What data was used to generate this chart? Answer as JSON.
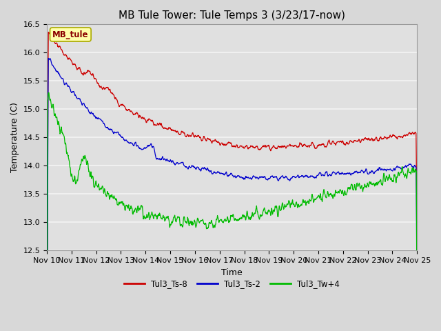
{
  "title": "MB Tule Tower: Tule Temps 3 (3/23/17-now)",
  "xlabel": "Time",
  "ylabel": "Temperature (C)",
  "ylim": [
    12.5,
    16.5
  ],
  "xlim": [
    0,
    15
  ],
  "x_tick_labels": [
    "Nov 10",
    "Nov 11",
    "Nov 12",
    "Nov 13",
    "Nov 14",
    "Nov 15",
    "Nov 16",
    "Nov 17",
    "Nov 18",
    "Nov 19",
    "Nov 20",
    "Nov 21",
    "Nov 22",
    "Nov 23",
    "Nov 24",
    "Nov 25"
  ],
  "legend_labels": [
    "Tul3_Ts-8",
    "Tul3_Ts-2",
    "Tul3_Tw+4"
  ],
  "line_colors": [
    "#cc0000",
    "#0000cc",
    "#00bb00"
  ],
  "watermark_text": "MB_tule",
  "background_color": "#d8d8d8",
  "plot_bg_color": "#e0e0e0",
  "grid_color": "#f0f0f0",
  "title_fontsize": 11,
  "axis_fontsize": 9,
  "tick_fontsize": 8
}
